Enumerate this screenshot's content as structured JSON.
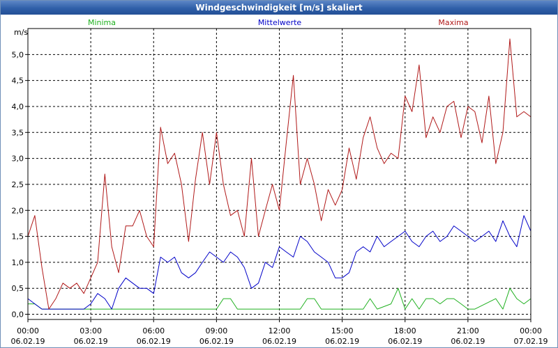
{
  "window": {
    "title": "Windgeschwindigkeit [m/s] skaliert"
  },
  "colors": {
    "minima": "#1fb01f",
    "mittelwerte": "#0000c8",
    "maxima": "#b01818",
    "grid": "#000000"
  },
  "legend": {
    "minima": "Minima",
    "mittelwerte": "Mittelwerte",
    "maxima": "Maxima"
  },
  "chart_data": {
    "type": "line",
    "ylabel": "m/s",
    "ylim": [
      -0.1,
      5.5
    ],
    "xlim": [
      0,
      24
    ],
    "grid": true,
    "yticks": [
      "0,0",
      "0,5",
      "1,0",
      "1,5",
      "2,0",
      "2,5",
      "3,0",
      "3,5",
      "4,0",
      "4,5",
      "5,0"
    ],
    "xticks": [
      {
        "time": "00:00",
        "date": "06.02.19"
      },
      {
        "time": "03:00",
        "date": "06.02.19"
      },
      {
        "time": "06:00",
        "date": "06.02.19"
      },
      {
        "time": "09:00",
        "date": "06.02.19"
      },
      {
        "time": "12:00",
        "date": "06.02.19"
      },
      {
        "time": "15:00",
        "date": "06.02.19"
      },
      {
        "time": "18:00",
        "date": "06.02.19"
      },
      {
        "time": "21:00",
        "date": "06.02.19"
      },
      {
        "time": "00:00",
        "date": "07.02.19"
      }
    ],
    "series": [
      {
        "name": "Minima",
        "key": "minima",
        "x": [
          0,
          0.33,
          0.67,
          4.0,
          8.67,
          9.0,
          9.33,
          9.67,
          10.0,
          10.33,
          11.0,
          11.33,
          13.0,
          13.33,
          13.67,
          14.0,
          16.0,
          16.33,
          16.67,
          17.33,
          17.67,
          18.0,
          18.33,
          18.67,
          19.0,
          19.33,
          19.67,
          20.0,
          20.33,
          20.67,
          21.0,
          21.33,
          22.33,
          22.67,
          23.0,
          23.33,
          23.67,
          24.0
        ],
        "y": [
          0.2,
          0.2,
          0.1,
          0.1,
          0.1,
          0.1,
          0.3,
          0.3,
          0.1,
          0.1,
          0.1,
          0.1,
          0.1,
          0.3,
          0.3,
          0.1,
          0.1,
          0.3,
          0.1,
          0.2,
          0.5,
          0.1,
          0.3,
          0.1,
          0.3,
          0.3,
          0.2,
          0.3,
          0.3,
          0.2,
          0.1,
          0.1,
          0.3,
          0.1,
          0.5,
          0.3,
          0.2,
          0.3
        ]
      },
      {
        "name": "Mittelwerte",
        "key": "mittelwerte",
        "x": [
          0,
          0.33,
          0.67,
          1.0,
          2.0,
          2.33,
          2.67,
          3.0,
          3.33,
          3.67,
          4.0,
          4.33,
          4.67,
          5.0,
          5.33,
          5.67,
          6.0,
          6.33,
          6.67,
          7.0,
          7.33,
          7.67,
          8.0,
          8.33,
          8.67,
          9.0,
          9.33,
          9.67,
          10.0,
          10.33,
          10.67,
          11.0,
          11.33,
          11.67,
          12.0,
          12.33,
          12.67,
          13.0,
          13.33,
          13.67,
          14.0,
          14.33,
          14.67,
          15.0,
          15.33,
          15.67,
          16.0,
          16.33,
          16.67,
          17.0,
          17.33,
          17.67,
          18.0,
          18.33,
          18.67,
          19.0,
          19.33,
          19.67,
          20.0,
          20.33,
          20.67,
          21.0,
          21.33,
          21.67,
          22.0,
          22.33,
          22.67,
          23.0,
          23.33,
          23.67,
          24.0
        ],
        "y": [
          0.3,
          0.2,
          0.1,
          0.1,
          0.1,
          0.1,
          0.1,
          0.2,
          0.4,
          0.3,
          0.1,
          0.5,
          0.7,
          0.6,
          0.5,
          0.5,
          0.4,
          1.1,
          1.0,
          1.1,
          0.8,
          0.7,
          0.8,
          1.0,
          1.2,
          1.1,
          1.0,
          1.2,
          1.1,
          0.9,
          0.5,
          0.6,
          1.0,
          0.9,
          1.3,
          1.2,
          1.1,
          1.5,
          1.4,
          1.2,
          1.1,
          1.0,
          0.7,
          0.7,
          0.8,
          1.2,
          1.3,
          1.2,
          1.5,
          1.3,
          1.4,
          1.5,
          1.6,
          1.4,
          1.3,
          1.5,
          1.6,
          1.4,
          1.5,
          1.7,
          1.6,
          1.5,
          1.4,
          1.5,
          1.6,
          1.4,
          1.8,
          1.5,
          1.3,
          1.9,
          1.6
        ]
      },
      {
        "name": "Maxima",
        "key": "maxima",
        "x": [
          0,
          0.33,
          0.67,
          1.0,
          1.33,
          1.67,
          2.0,
          2.33,
          2.67,
          3.0,
          3.33,
          3.67,
          4.0,
          4.33,
          4.67,
          5.0,
          5.33,
          5.67,
          6.0,
          6.33,
          6.67,
          7.0,
          7.33,
          7.67,
          8.0,
          8.33,
          8.67,
          9.0,
          9.33,
          9.67,
          10.0,
          10.33,
          10.67,
          11.0,
          11.33,
          11.67,
          12.0,
          12.33,
          12.67,
          13.0,
          13.33,
          13.67,
          14.0,
          14.33,
          14.67,
          15.0,
          15.33,
          15.67,
          16.0,
          16.33,
          16.67,
          17.0,
          17.33,
          17.67,
          18.0,
          18.33,
          18.67,
          19.0,
          19.33,
          19.67,
          20.0,
          20.33,
          20.67,
          21.0,
          21.33,
          21.67,
          22.0,
          22.33,
          22.67,
          23.0,
          23.33,
          23.67,
          24.0
        ],
        "y": [
          1.5,
          1.9,
          0.9,
          0.1,
          0.3,
          0.6,
          0.5,
          0.6,
          0.4,
          0.7,
          1.0,
          2.7,
          1.3,
          0.8,
          1.7,
          1.7,
          2.0,
          1.5,
          1.3,
          3.6,
          2.9,
          3.1,
          2.5,
          1.4,
          2.6,
          3.5,
          2.5,
          3.5,
          2.5,
          1.9,
          2.0,
          1.5,
          3.0,
          1.5,
          2.0,
          2.5,
          2.0,
          3.3,
          4.6,
          2.5,
          3.0,
          2.5,
          1.8,
          2.4,
          2.1,
          2.4,
          3.2,
          2.6,
          3.4,
          3.8,
          3.2,
          2.9,
          3.1,
          3.0,
          4.2,
          3.9,
          4.8,
          3.4,
          3.8,
          3.5,
          4.0,
          4.1,
          3.4,
          4.0,
          3.9,
          3.3,
          4.2,
          2.9,
          3.5,
          5.3,
          3.8,
          3.9,
          3.8
        ]
      }
    ]
  }
}
